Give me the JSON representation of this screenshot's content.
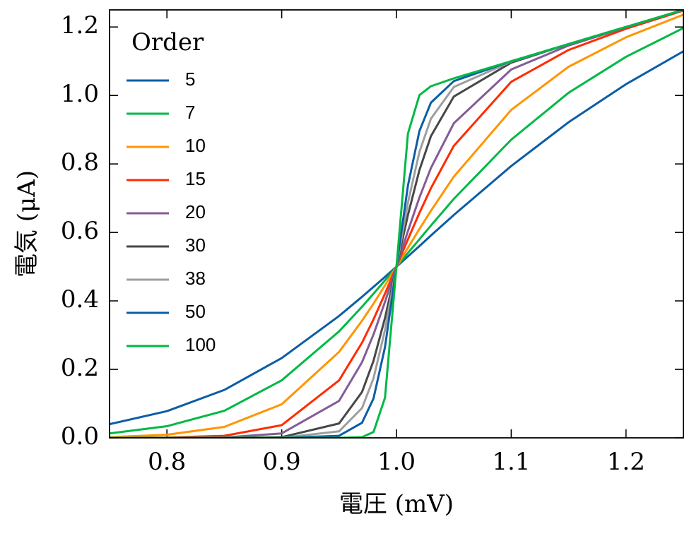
{
  "chart_data": {
    "type": "line",
    "xlabel": "電圧 (mV)",
    "ylabel": "電気 (μA)",
    "legend_title": "Order",
    "legend": "upper left",
    "x": [
      0.75,
      0.8,
      0.85,
      0.9,
      0.95,
      0.97,
      0.98,
      0.99,
      1.0,
      1.01,
      1.02,
      1.03,
      1.05,
      1.1,
      1.15,
      1.2,
      1.25
    ],
    "series": [
      {
        "name": "5",
        "color": "#0C5DA5",
        "values": [
          0.04,
          0.078,
          0.14,
          0.233,
          0.356,
          0.412,
          0.441,
          0.47,
          0.5,
          0.53,
          0.56,
          0.591,
          0.651,
          0.794,
          0.922,
          1.033,
          1.129
        ]
      },
      {
        "name": "7",
        "color": "#00B945",
        "values": [
          0.013,
          0.034,
          0.079,
          0.168,
          0.311,
          0.383,
          0.421,
          0.46,
          0.5,
          0.54,
          0.58,
          0.62,
          0.698,
          0.871,
          1.008,
          1.113,
          1.197
        ]
      },
      {
        "name": "10",
        "color": "#FF9500",
        "values": [
          0.002,
          0.009,
          0.032,
          0.098,
          0.251,
          0.342,
          0.392,
          0.445,
          0.5,
          0.555,
          0.61,
          0.663,
          0.763,
          0.958,
          1.084,
          1.17,
          1.236
        ]
      },
      {
        "name": "15",
        "color": "#FF2C00",
        "values": [
          0.0,
          0.001,
          0.006,
          0.037,
          0.168,
          0.278,
          0.346,
          0.421,
          0.5,
          0.58,
          0.657,
          0.729,
          0.853,
          1.04,
          1.133,
          1.195,
          1.248
        ]
      },
      {
        "name": "20",
        "color": "#845B97",
        "values": [
          0.0,
          0.0,
          0.001,
          0.013,
          0.108,
          0.221,
          0.302,
          0.397,
          0.5,
          0.604,
          0.702,
          0.788,
          0.919,
          1.076,
          1.146,
          1.199,
          1.25
        ]
      },
      {
        "name": "30",
        "color": "#474747",
        "values": [
          0.0,
          0.0,
          0.0,
          0.002,
          0.042,
          0.134,
          0.225,
          0.35,
          0.5,
          0.651,
          0.782,
          0.881,
          0.997,
          1.096,
          1.15,
          1.2,
          1.25
        ]
      },
      {
        "name": "38",
        "color": "#9E9E9E",
        "values": [
          0.0,
          0.0,
          0.0,
          0.0,
          0.019,
          0.087,
          0.174,
          0.315,
          0.5,
          0.687,
          0.835,
          0.932,
          1.025,
          1.099,
          1.15,
          1.2,
          1.25
        ]
      },
      {
        "name": "50",
        "color": "#0C5DA5",
        "values": [
          0.0,
          0.0,
          0.0,
          0.0,
          0.006,
          0.044,
          0.115,
          0.265,
          0.5,
          0.737,
          0.896,
          0.979,
          1.042,
          1.1,
          1.15,
          1.2,
          1.25
        ]
      },
      {
        "name": "100",
        "color": "#00B945",
        "values": [
          0.0,
          0.0,
          0.0,
          0.0,
          0.0,
          0.002,
          0.017,
          0.117,
          0.5,
          0.889,
          1.001,
          1.027,
          1.05,
          1.1,
          1.15,
          1.2,
          1.25
        ]
      }
    ],
    "xlim": [
      0.75,
      1.25
    ],
    "xticks": [
      0.8,
      0.9,
      {
        "value": 1,
        "label": "1.0"
      },
      1.1,
      1.2
    ],
    "ylim": [
      0,
      1.25
    ],
    "yticks": [
      {
        "value": 0,
        "label": "0.0"
      },
      0.2,
      0.4,
      0.6,
      0.8,
      {
        "value": 1,
        "label": "1.0"
      },
      1.2
    ]
  }
}
